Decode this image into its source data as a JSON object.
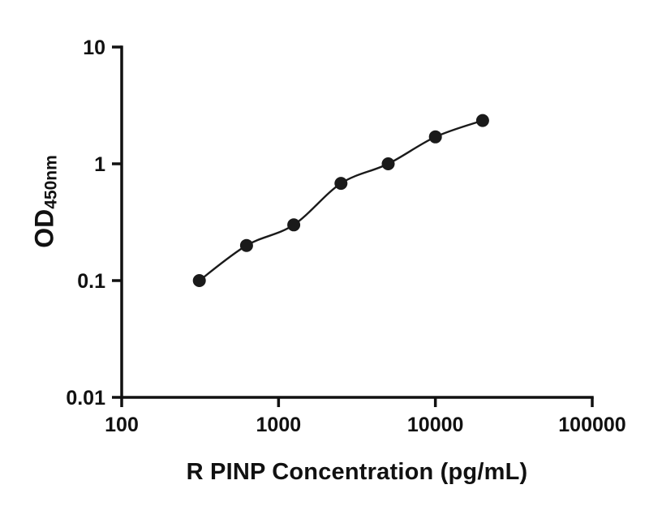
{
  "chart_data": {
    "type": "scatter",
    "title": "",
    "xlabel": "R PINP Concentration (pg/mL)",
    "ylabel_main": "OD",
    "ylabel_sub": "450nm",
    "x_scale": "log",
    "y_scale": "log",
    "xlim": [
      100,
      100000
    ],
    "ylim": [
      0.01,
      10
    ],
    "x_ticks": [
      100,
      1000,
      10000,
      100000
    ],
    "x_tick_labels": [
      "100",
      "1000",
      "10000",
      "100000"
    ],
    "y_ticks": [
      0.01,
      0.1,
      1,
      10
    ],
    "y_tick_labels": [
      "0.01",
      "0.1",
      "1",
      "10"
    ],
    "x": [
      312.5,
      625,
      1250,
      2500,
      5000,
      10000,
      20000
    ],
    "y": [
      0.1,
      0.2,
      0.3,
      0.68,
      1.0,
      1.7,
      2.35
    ],
    "grid": false,
    "legend_position": "none",
    "line_color": "#1a1a1a",
    "marker_color": "#1a1a1a",
    "axis_color": "#111111",
    "marker_radius": 8
  }
}
